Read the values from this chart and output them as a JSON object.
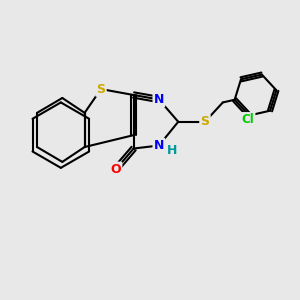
{
  "background_color": "#e8e8e8",
  "bond_color": "#000000",
  "bond_width": 1.5,
  "atom_colors": {
    "S": "#ccaa00",
    "N": "#0000ff",
    "O": "#ff0000",
    "Cl": "#00cc00",
    "H": "#009999",
    "C": "#000000"
  },
  "font_size": 9,
  "fig_size": [
    3.0,
    3.0
  ],
  "dpi": 100
}
